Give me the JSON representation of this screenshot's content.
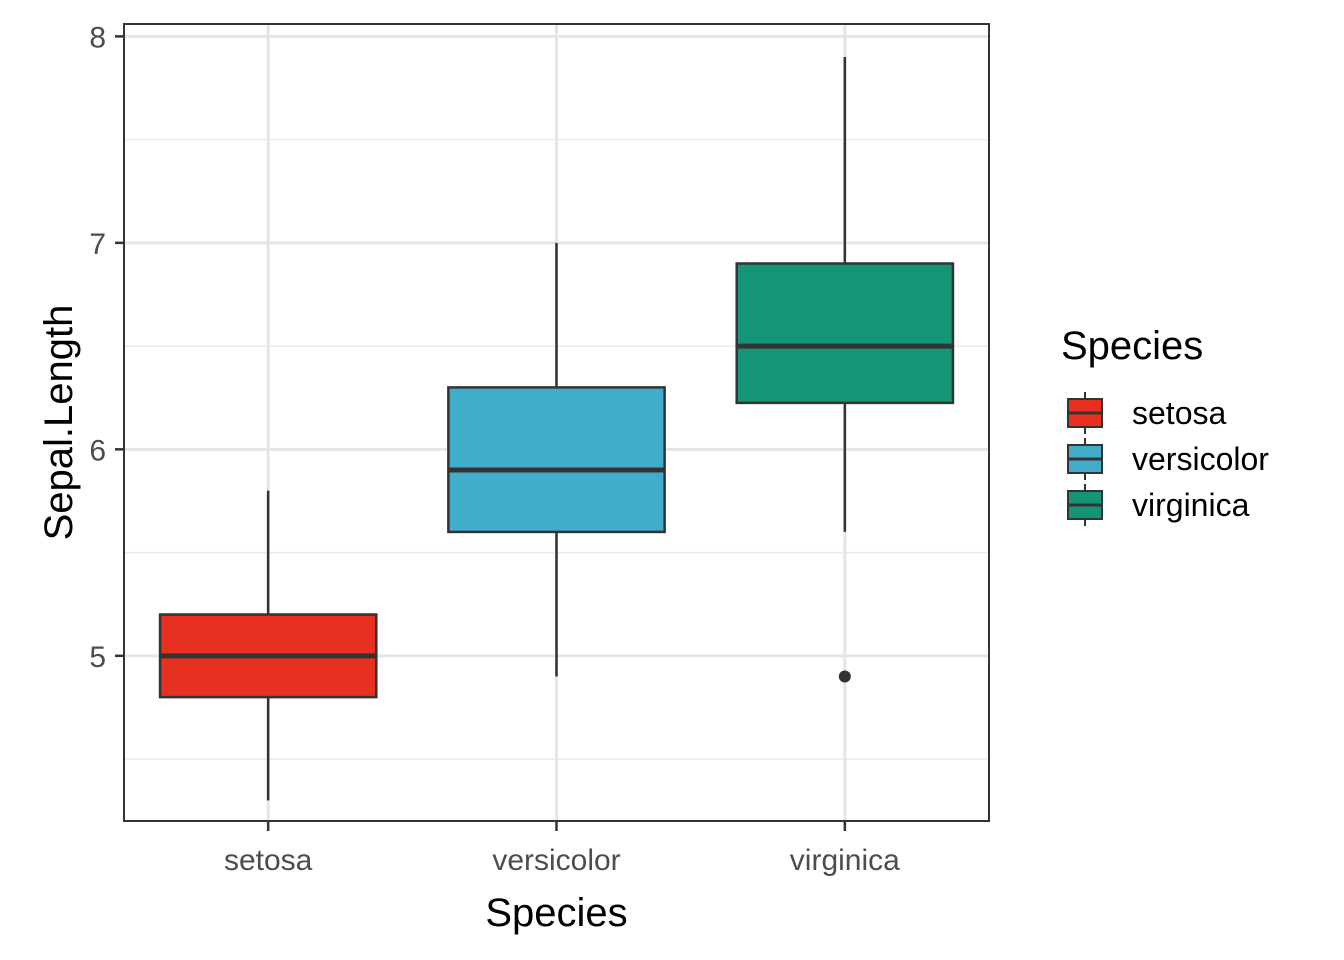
{
  "chart_data": {
    "type": "boxplot",
    "xlabel": "Species",
    "ylabel": "Sepal.Length",
    "ylim": [
      4.2,
      8.06
    ],
    "yticks": [
      5,
      6,
      7,
      8
    ],
    "grid": true,
    "legend": {
      "title": "Species",
      "placement": "right"
    },
    "categories": [
      "setosa",
      "versicolor",
      "virginica"
    ],
    "boxes": [
      {
        "name": "setosa",
        "whisker_low": 4.3,
        "q1": 4.8,
        "median": 5.0,
        "q3": 5.2,
        "whisker_high": 5.8,
        "outliers": [],
        "color": "#E7301F"
      },
      {
        "name": "versicolor",
        "whisker_low": 4.9,
        "q1": 5.6,
        "median": 5.9,
        "q3": 6.3,
        "whisker_high": 7.0,
        "outliers": [],
        "color": "#42ADCB"
      },
      {
        "name": "virginica",
        "whisker_low": 5.6,
        "q1": 6.225,
        "median": 6.5,
        "q3": 6.9,
        "whisker_high": 7.9,
        "outliers": [
          4.9
        ],
        "color": "#159577"
      }
    ]
  }
}
